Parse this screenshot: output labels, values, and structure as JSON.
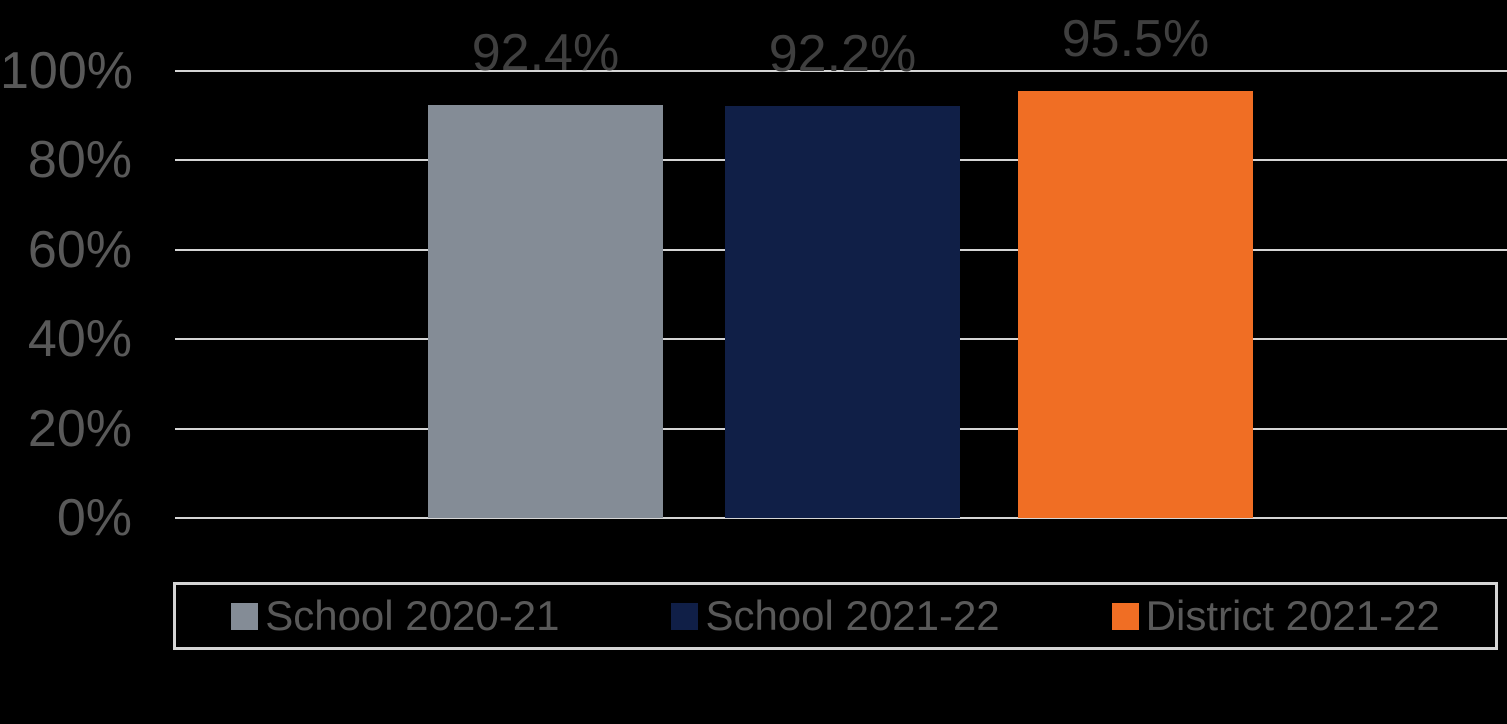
{
  "colors": {
    "background": "#000000",
    "gridline": "#D5D5D5",
    "axis_text": "#595959",
    "value_label_text": "#3F3F3F",
    "legend_text": "#595959",
    "legend_border": "#D5D5D5"
  },
  "chart_data": {
    "type": "bar",
    "categories": [
      "School 2020-21",
      "School 2021-22",
      "District 2021-22"
    ],
    "values": [
      92.4,
      92.2,
      95.5
    ],
    "value_labels": [
      "92.4%",
      "92.2%",
      "95.5%"
    ],
    "bar_colors": [
      "#848C96",
      "#101F47",
      "#F06E24"
    ],
    "title": "",
    "xlabel": "",
    "ylabel": "",
    "ylim": [
      0,
      100
    ],
    "yticks": [
      {
        "value": 0,
        "label": "0%"
      },
      {
        "value": 20,
        "label": "20%"
      },
      {
        "value": 40,
        "label": "40%"
      },
      {
        "value": 60,
        "label": "60%"
      },
      {
        "value": 80,
        "label": "80%"
      },
      {
        "value": 100,
        "label": "100%"
      }
    ],
    "grid": true,
    "legend_position": "bottom",
    "legend": [
      {
        "label": "School 2020-21",
        "color": "#848C96"
      },
      {
        "label": "School 2021-22",
        "color": "#101F47"
      },
      {
        "label": "District 2021-22",
        "color": "#F06E24"
      }
    ]
  }
}
